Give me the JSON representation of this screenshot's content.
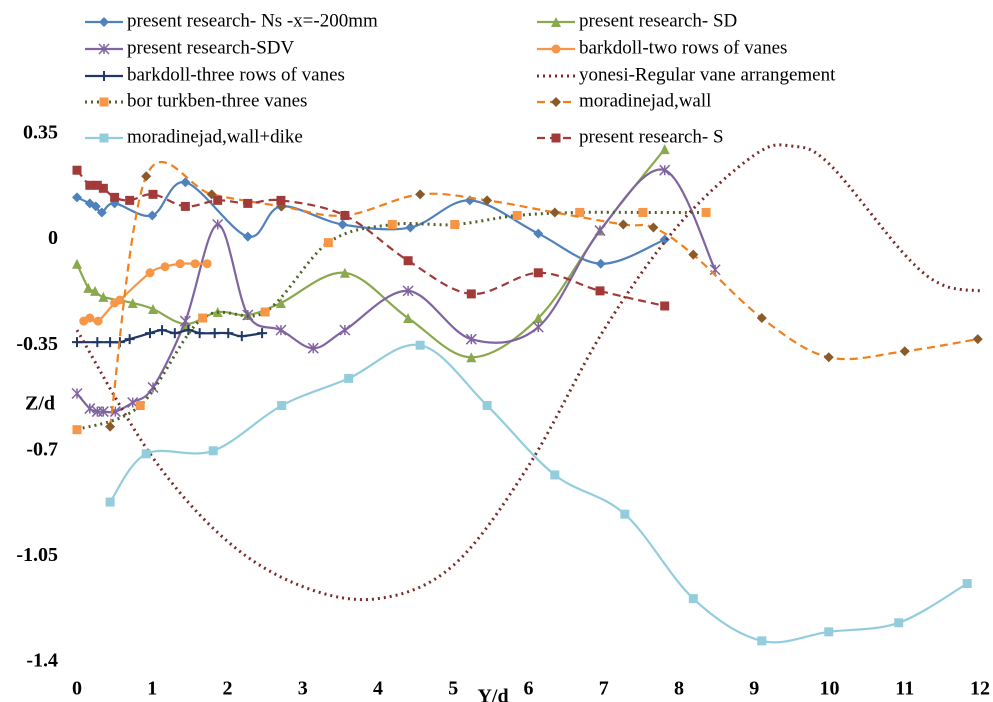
{
  "chart_data": {
    "type": "line",
    "x_label": "Y/d",
    "y_label": "Z/d",
    "xlim": [
      0,
      12
    ],
    "xticks": [
      0,
      1,
      2,
      3,
      4,
      5,
      6,
      7,
      8,
      9,
      10,
      11,
      12
    ],
    "ylim": [
      -1.4,
      0.35
    ],
    "yticks": [
      0.35,
      0,
      -0.35,
      -0.7,
      -1.05,
      -1.4
    ],
    "smooth": true,
    "series": [
      {
        "name": "present research- Ns -x=-200mm",
        "color": "#4f81bd",
        "marker": "diamond",
        "dash": "solid",
        "x": [
          0,
          0.17,
          0.25,
          0.33,
          0.5,
          1.0,
          1.44,
          2.27,
          2.71,
          3.53,
          4.43,
          5.22,
          6.13,
          6.96,
          7.81
        ],
        "values": [
          0.14,
          0.12,
          0.11,
          0.09,
          0.12,
          0.08,
          0.19,
          0.01,
          0.11,
          0.05,
          0.04,
          0.13,
          0.02,
          -0.08,
          0
        ]
      },
      {
        "name": "present research- SD",
        "color": "#8aa84e",
        "marker": "triangle",
        "dash": "solid",
        "x": [
          0,
          0.15,
          0.24,
          0.35,
          0.74,
          1.01,
          1.44,
          1.87,
          2.27,
          2.71,
          3.56,
          4.4,
          5.24,
          6.13,
          6.95,
          7.81
        ],
        "values": [
          -0.08,
          -0.16,
          -0.17,
          -0.19,
          -0.21,
          -0.23,
          -0.28,
          -0.24,
          -0.25,
          -0.21,
          -0.11,
          -0.26,
          -0.39,
          -0.26,
          0.03,
          0.3
        ]
      },
      {
        "name": "present research-SDV",
        "color": "#8064a2",
        "marker": "star",
        "dash": "solid",
        "x": [
          0,
          0.17,
          0.27,
          0.35,
          0.51,
          0.74,
          1.01,
          1.44,
          1.87,
          2.27,
          2.71,
          3.14,
          3.56,
          4.4,
          5.24,
          6.13,
          6.95,
          7.81,
          8.48
        ],
        "values": [
          -0.51,
          -0.56,
          -0.57,
          -0.57,
          -0.57,
          -0.54,
          -0.49,
          -0.27,
          0.05,
          -0.25,
          -0.3,
          -0.36,
          -0.3,
          -0.17,
          -0.33,
          -0.29,
          0.03,
          0.23,
          -0.1
        ]
      },
      {
        "name": "barkdoll-two rows of vanes",
        "color": "#f79646",
        "marker": "circle",
        "dash": "solid",
        "x": [
          0.09,
          0.17,
          0.28,
          0.5,
          0.57,
          0.97,
          1.17,
          1.37,
          1.57,
          1.73
        ],
        "values": [
          -0.27,
          -0.26,
          -0.27,
          -0.21,
          -0.2,
          -0.11,
          -0.09,
          -0.08,
          -0.08,
          -0.08
        ]
      },
      {
        "name": "barkdoll-three rows of vanes",
        "color": "#1f3864",
        "marker": "plus",
        "dash": "solid",
        "x": [
          0,
          0.27,
          0.44,
          0.57,
          0.7,
          0.97,
          1.13,
          1.3,
          1.48,
          1.63,
          1.83,
          2.01,
          2.19,
          2.46
        ],
        "values": [
          -0.34,
          -0.34,
          -0.34,
          -0.34,
          -0.33,
          -0.31,
          -0.3,
          -0.31,
          -0.3,
          -0.31,
          -0.31,
          -0.31,
          -0.32,
          -0.31
        ]
      },
      {
        "name": "yonesi-Regular vane arrangement",
        "color": "#7b2a2a",
        "marker": "none",
        "dash": "dotted",
        "x": [
          0,
          1,
          2,
          3,
          4,
          5,
          6,
          7,
          8,
          9,
          9.5,
          10,
          11,
          11.5,
          12
        ],
        "values": [
          -0.3,
          -0.72,
          -1.0,
          -1.15,
          -1.19,
          -1.08,
          -0.75,
          -0.3,
          0.05,
          0.28,
          0.31,
          0.25,
          -0.05,
          -0.15,
          -0.17
        ]
      },
      {
        "name": "bor turkben-three vanes",
        "color": "#4f6228",
        "marker_color": "#f79646",
        "marker": "square",
        "dash": "dotted",
        "x": [
          0,
          0.84,
          1.67,
          2.5,
          3.34,
          4.19,
          5.02,
          5.85,
          6.68,
          7.52,
          8.36
        ],
        "values": [
          -0.63,
          -0.55,
          -0.26,
          -0.24,
          -0.01,
          0.05,
          0.05,
          0.08,
          0.09,
          0.09,
          0.09
        ]
      },
      {
        "name": "moradinejad,wall",
        "color": "#f0801a",
        "marker_color": "#8b5a2b",
        "marker": "diamond",
        "dash": "dashed",
        "x": [
          0.44,
          0.92,
          1.79,
          2.72,
          3.56,
          4.56,
          5.45,
          6.35,
          7.26,
          7.66,
          8.19,
          9.1,
          9.99,
          11.0,
          11.97
        ],
        "values": [
          -0.62,
          0.21,
          0.15,
          0.11,
          0.08,
          0.15,
          0.13,
          0.09,
          0.05,
          0.04,
          -0.05,
          -0.26,
          -0.39,
          -0.37,
          -0.33
        ]
      },
      {
        "name": "moradinejad,wall+dike",
        "color": "#93cddd",
        "marker": "square",
        "dash": "solid",
        "x": [
          0.44,
          0.92,
          1.81,
          2.72,
          3.61,
          4.56,
          5.45,
          6.35,
          7.28,
          8.19,
          9.1,
          9.99,
          10.92,
          11.83
        ],
        "values": [
          -0.87,
          -0.71,
          -0.7,
          -0.55,
          -0.46,
          -0.35,
          -0.55,
          -0.78,
          -0.91,
          -1.19,
          -1.33,
          -1.3,
          -1.27,
          -1.14
        ]
      },
      {
        "name": "present research- S",
        "color": "#a33a3a",
        "marker": "square",
        "dash": "dashed",
        "x": [
          0,
          0.17,
          0.27,
          0.35,
          0.5,
          0.7,
          1.01,
          1.44,
          1.87,
          2.27,
          2.71,
          3.56,
          4.4,
          5.24,
          6.13,
          6.95,
          7.81
        ],
        "values": [
          0.23,
          0.18,
          0.18,
          0.17,
          0.14,
          0.13,
          0.15,
          0.11,
          0.13,
          0.12,
          0.13,
          0.08,
          -0.07,
          -0.18,
          -0.11,
          -0.17,
          -0.22
        ]
      }
    ]
  }
}
